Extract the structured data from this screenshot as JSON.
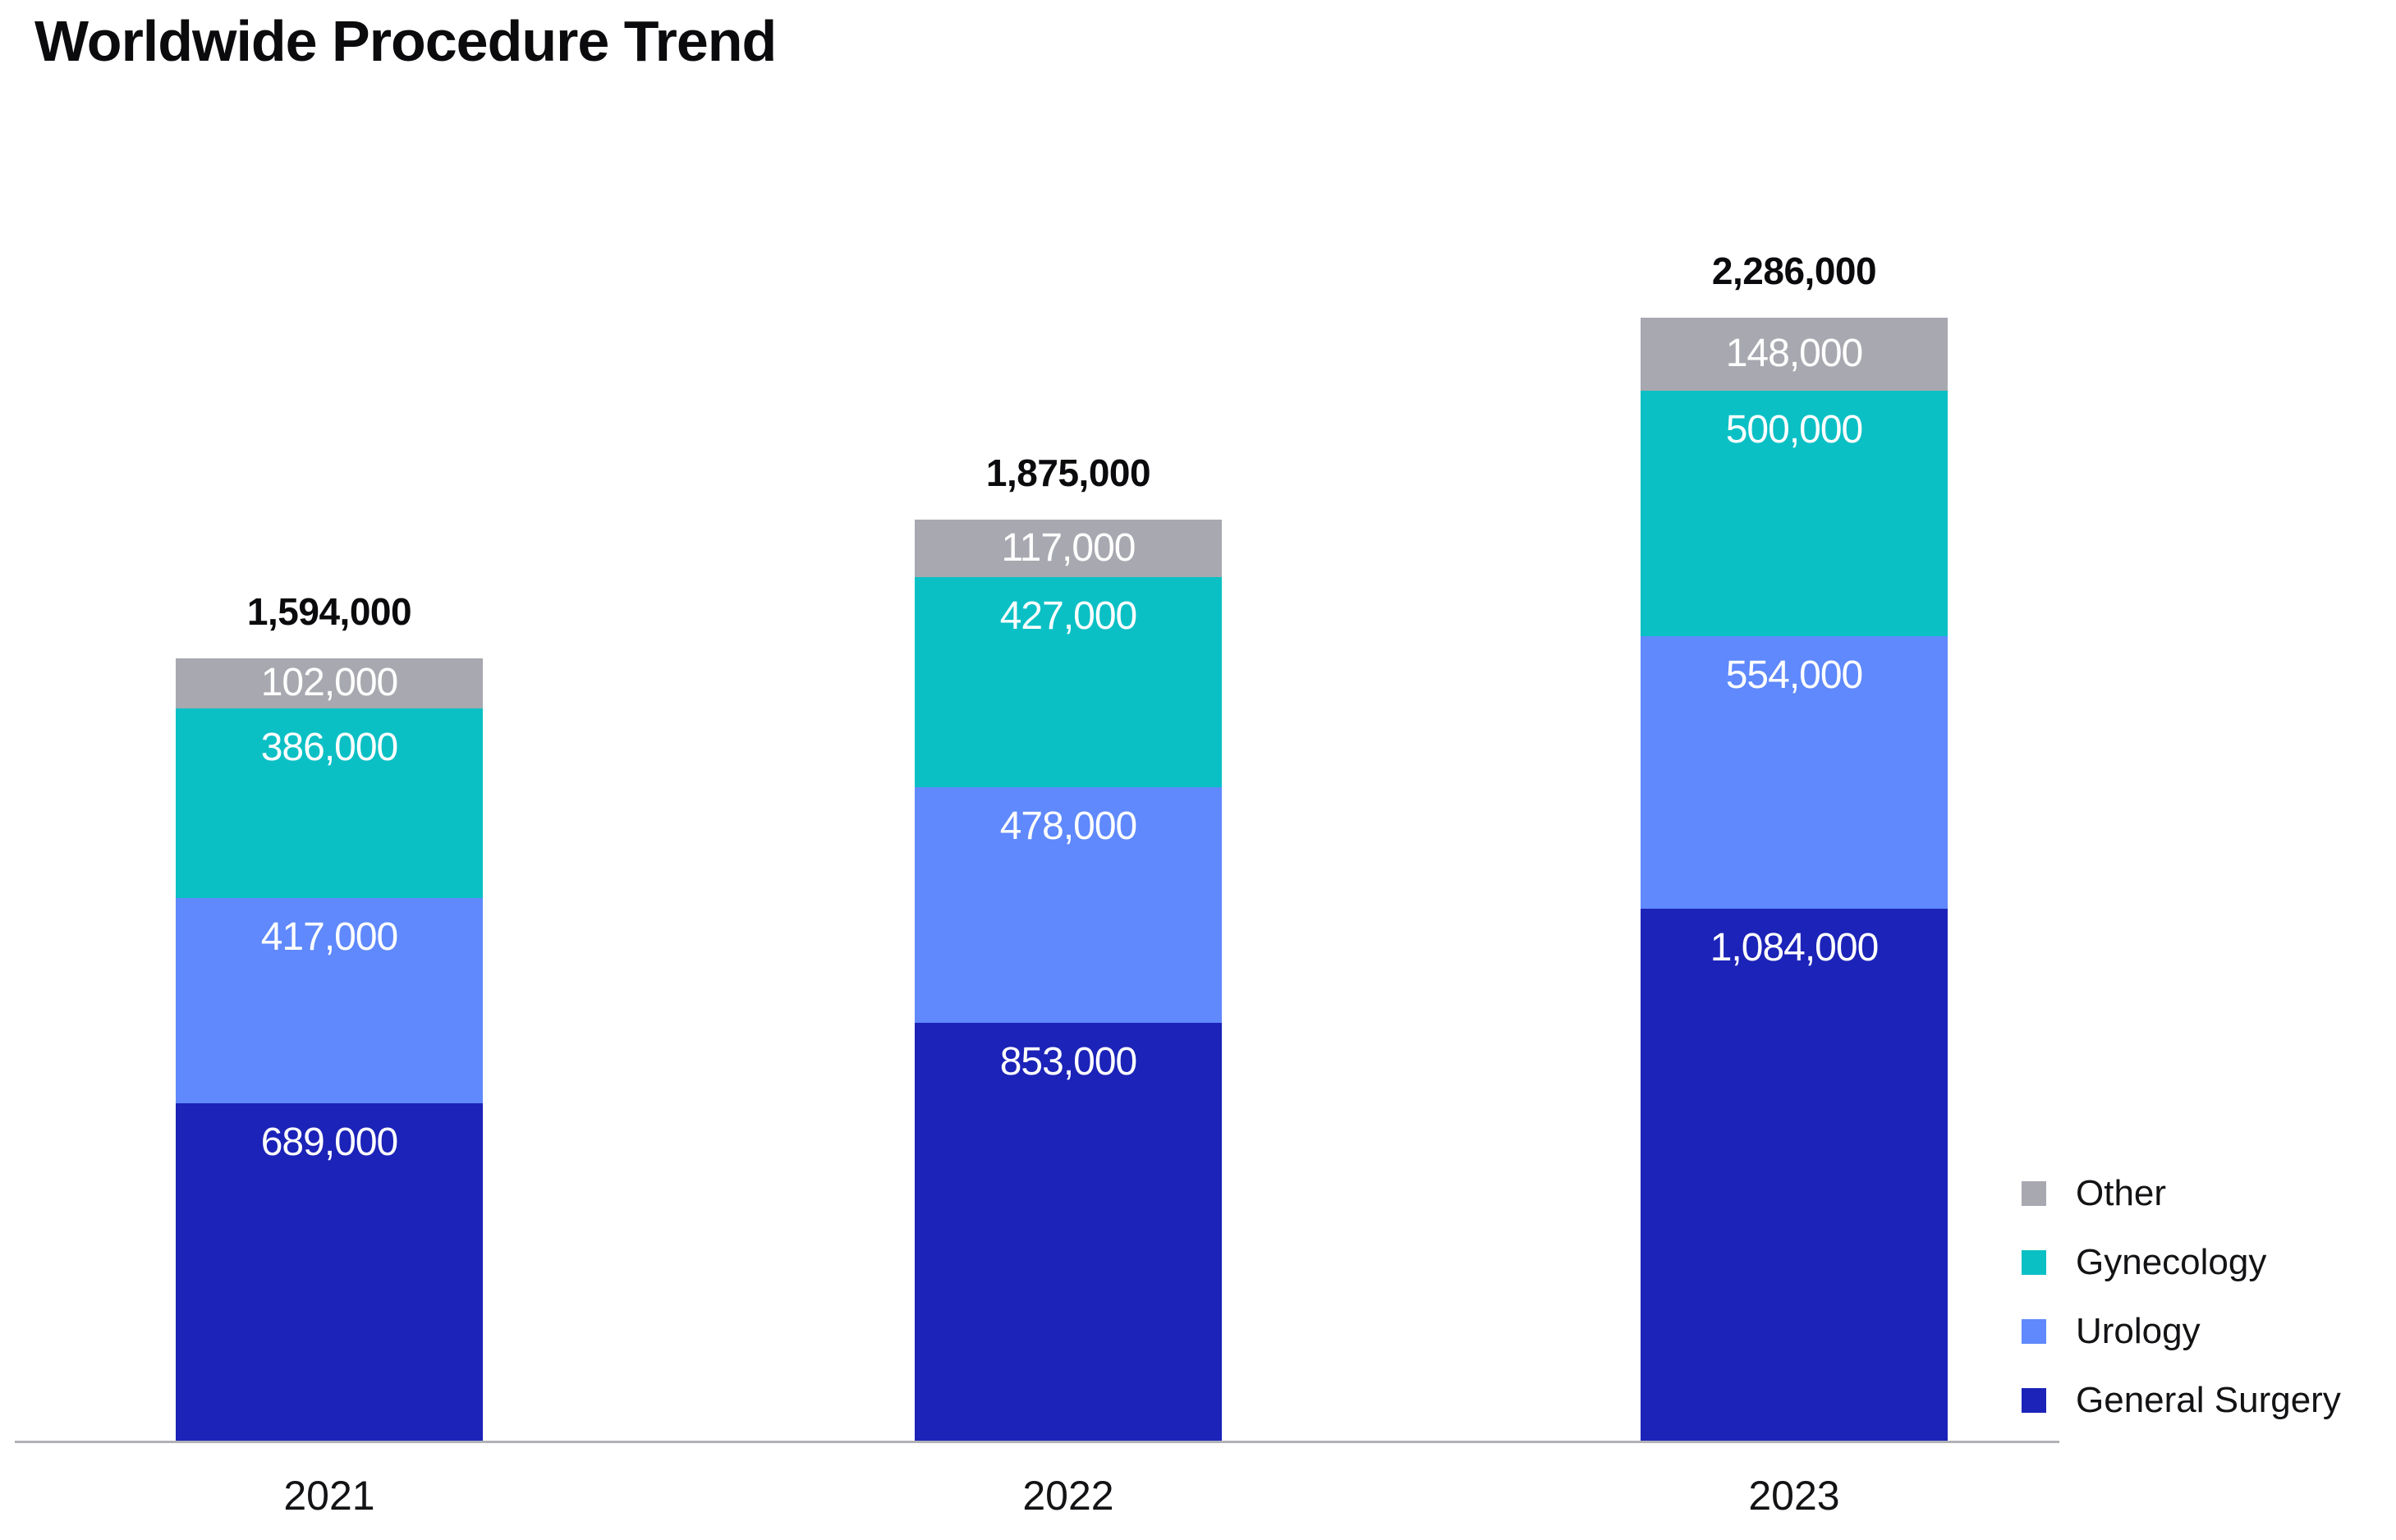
{
  "title": "Worldwide Procedure Trend",
  "chart_data": {
    "type": "bar",
    "variant": "stacked-column",
    "categories": [
      "2021",
      "2022",
      "2023"
    ],
    "series": [
      {
        "name": "General Surgery",
        "color": "#1c23b8",
        "values": [
          689000,
          853000,
          1084000
        ],
        "labels": [
          "689,000",
          "853,000",
          "1,084,000"
        ]
      },
      {
        "name": "Urology",
        "color": "#5f89fc",
        "values": [
          417000,
          478000,
          554000
        ],
        "labels": [
          "417,000",
          "478,000",
          "554,000"
        ]
      },
      {
        "name": "Gynecology",
        "color": "#0bc0c5",
        "values": [
          386000,
          427000,
          500000
        ],
        "labels": [
          "386,000",
          "427,000",
          "500,000"
        ]
      },
      {
        "name": "Other",
        "color": "#a8a8b0",
        "values": [
          102000,
          117000,
          148000
        ],
        "labels": [
          "102,000",
          "117,000",
          "148,000"
        ]
      }
    ],
    "totals": [
      1594000,
      1875000,
      2286000
    ],
    "totals_labels": [
      "1,594,000",
      "1,875,000",
      "2,286,000"
    ],
    "legend": {
      "position": "bottom-right",
      "items": [
        "Other",
        "Gynecology",
        "Urology",
        "General Surgery"
      ]
    },
    "axis": {
      "baseline_color": "#b1b1b6",
      "grid": false,
      "xlabel": "",
      "ylabel": ""
    },
    "text_colors": {
      "title": "#0b0b0e",
      "total_label": "#0b0b0e",
      "segment_label": "#ffffff",
      "tick_label": "#131316"
    }
  }
}
